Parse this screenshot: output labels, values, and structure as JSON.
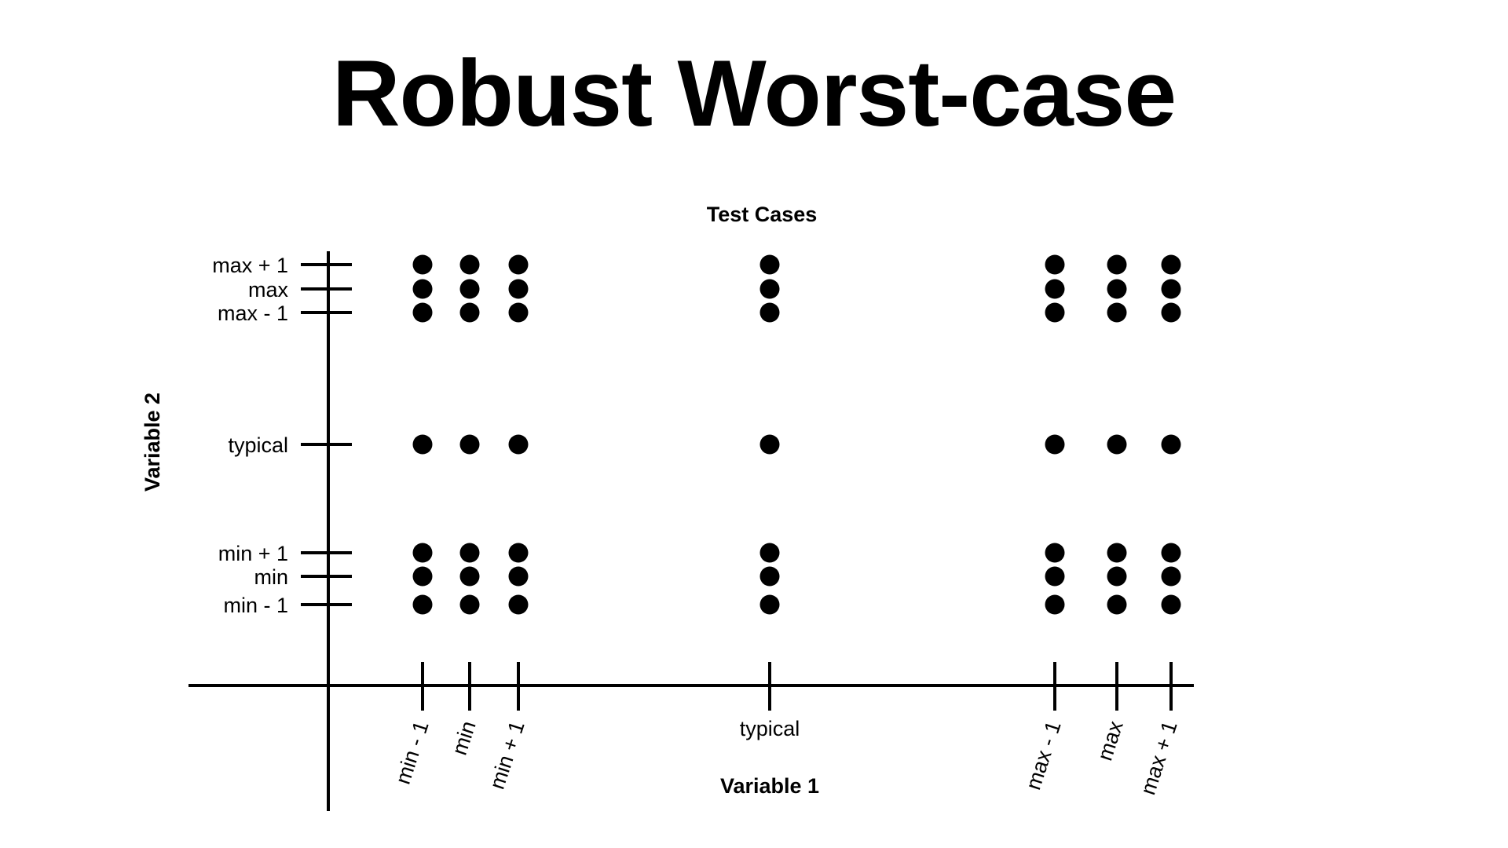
{
  "title": "Robust Worst-case",
  "diagram": {
    "subtitle": "Test Cases",
    "x_axis_label": "Variable 1",
    "y_axis_label": "Variable 2",
    "x_ticks": [
      "min - 1",
      "min",
      "min + 1",
      "typical",
      "max - 1",
      "max",
      "max + 1"
    ],
    "y_ticks": [
      "max + 1",
      "max",
      "max - 1",
      "typical",
      "min + 1",
      "min",
      "min - 1"
    ],
    "test_points_per_column": [
      7,
      7,
      7,
      7,
      7,
      7,
      7
    ],
    "colors": {
      "ink": "#000000",
      "background": "#ffffff"
    }
  }
}
